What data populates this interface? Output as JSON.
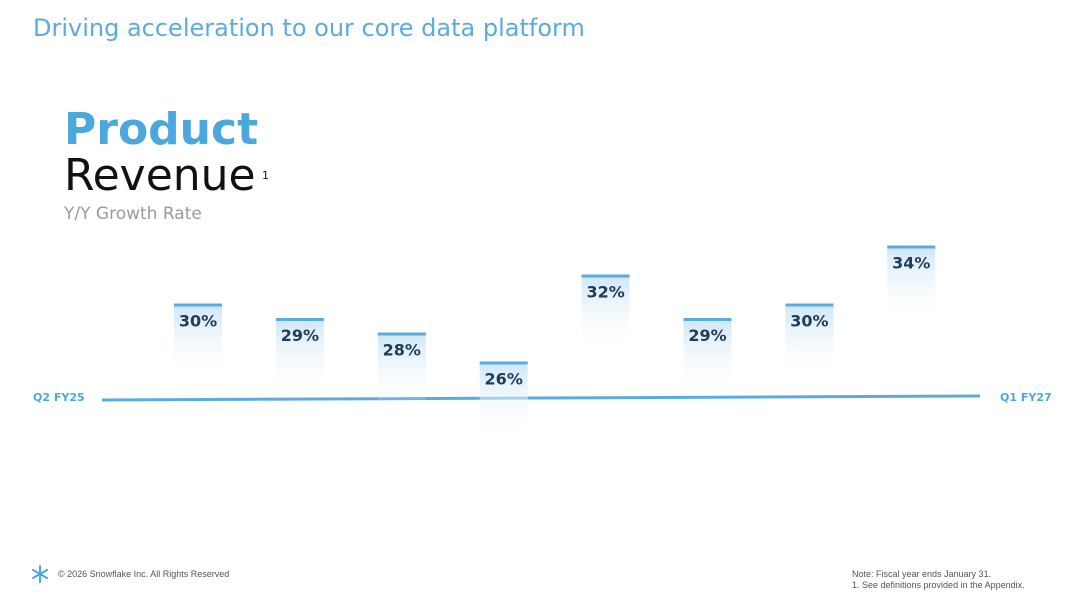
{
  "header": {
    "title": "Driving acceleration to our core data platform"
  },
  "chart_data": {
    "type": "bar",
    "title_lines": [
      "Product",
      "Revenue"
    ],
    "title_footnote": "1",
    "subtitle": "Y/Y Growth Rate",
    "categories": [
      "Q2 FY25",
      null,
      null,
      null,
      null,
      null,
      null,
      "Q1 FY27"
    ],
    "values": [
      30,
      29,
      28,
      26,
      32,
      29,
      30,
      34
    ],
    "value_labels": [
      "30%",
      "29%",
      "28%",
      "26%",
      "32%",
      "29%",
      "30%",
      "34%"
    ],
    "color": "#5aace0"
  },
  "footer": {
    "copyright": "© 2026 Snowflake Inc. All Rights Reserved",
    "notes": [
      "Note: Fiscal year ends January 31.",
      "1. See definitions provided in the Appendix."
    ]
  }
}
